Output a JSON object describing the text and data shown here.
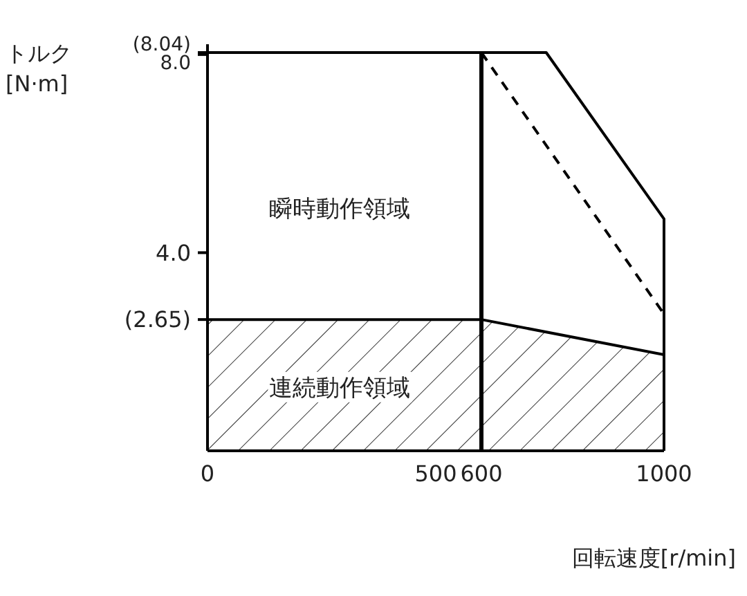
{
  "chart_data": {
    "type": "line",
    "xlabel": "回転速度[r/min]",
    "ylabel": "トルク\n[N·m]",
    "xlim": [
      0,
      1000
    ],
    "ylim": [
      0,
      8.04
    ],
    "ref_lines": [
      {
        "axis": "x",
        "value": 600,
        "color": "#000000"
      }
    ],
    "xticks": [
      0,
      500,
      600,
      1000
    ],
    "yticks": [
      {
        "value": 2.65,
        "label": "(2.65)"
      },
      {
        "value": 4,
        "label": "4.0"
      },
      {
        "value": 8,
        "label": "8.0"
      },
      {
        "value": 8.04,
        "label": "(8.04)"
      }
    ],
    "series": [
      {
        "type": "area",
        "color": "#000000",
        "x": [
          0,
          600,
          1000
        ],
        "values": [
          2.65,
          2.65,
          1.94
        ]
      },
      {
        "color": "#000000",
        "x": [
          0,
          742,
          1000,
          1000
        ],
        "values": [
          8.04,
          8.04,
          4.68,
          0
        ]
      },
      {
        "color": "#000000",
        "line_style": "dashed",
        "x": [
          600,
          1000
        ],
        "values": [
          8.04,
          2.76
        ]
      }
    ],
    "annotations": [
      "瞬時動作領域",
      "連続動作領域"
    ]
  }
}
